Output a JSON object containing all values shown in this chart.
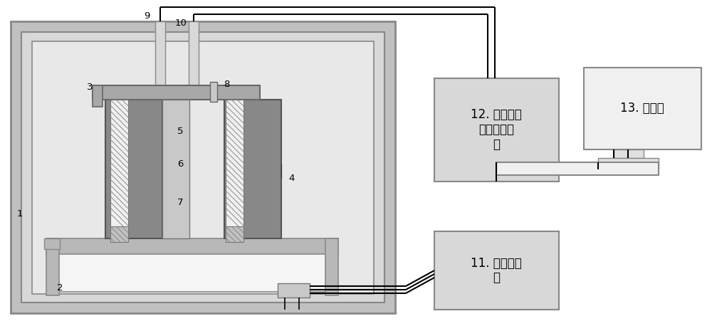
{
  "bg_color": "#ffffff",
  "outer_box_fc": "#c8c8c8",
  "inner_box1_fc": "#e8e8e8",
  "inner_box2_fc": "#d8d8d8",
  "chamber_fc": "#e0e0e0",
  "dark_block_fc": "#888888",
  "medium_gray": "#a8a8a8",
  "light_gray_fc": "#d0d0d0",
  "white": "#ffffff",
  "hatch_fc": "#cccccc",
  "box_fill": "#d8d8d8",
  "computer_fc": "#f0f0f0",
  "line_color": "#000000",
  "text_color": "#000000",
  "label_1": "1",
  "label_2": "2",
  "label_3": "3",
  "label_4": "4",
  "label_5": "5",
  "label_6": "6",
  "label_7": "7",
  "label_8": "8",
  "label_9": "9",
  "label_10": "10",
  "label_11": "11. 温度控制\n器",
  "label_12": "12. 光纤光栏\n波长检测系\n统",
  "label_13": "13. 计算机"
}
